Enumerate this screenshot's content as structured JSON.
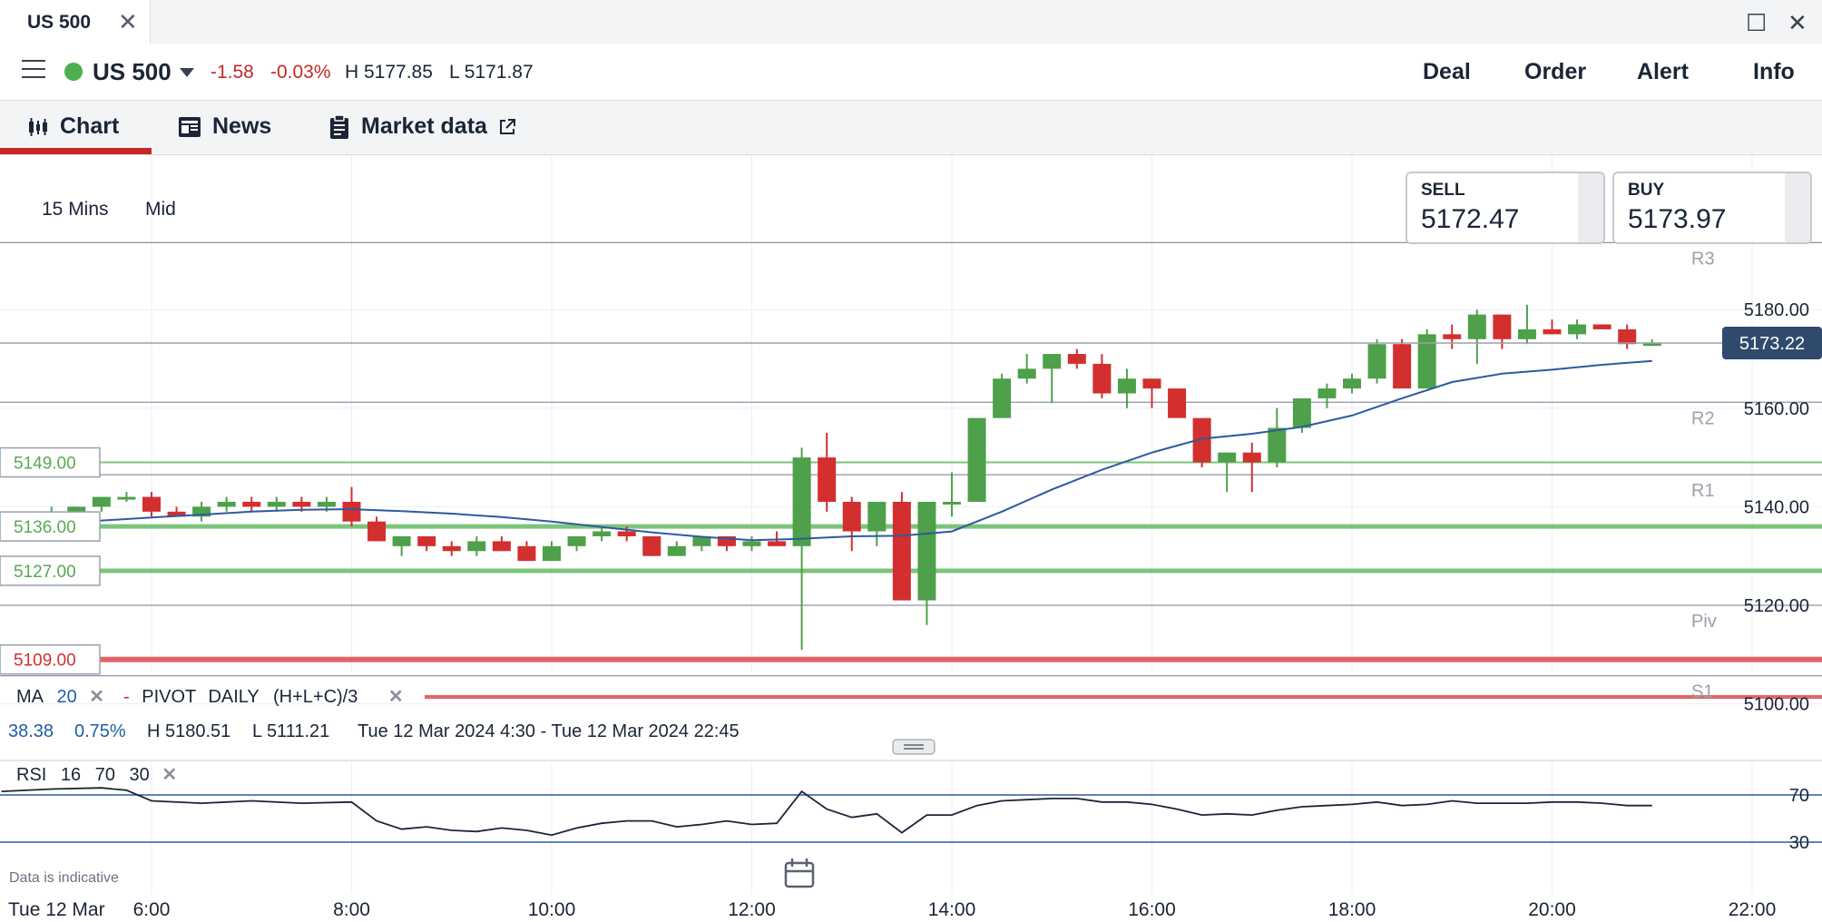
{
  "window": {
    "tab_title": "US 500",
    "close_glyph": "✕",
    "maximize_glyph": "☐",
    "window_close_glyph": "✕"
  },
  "header": {
    "instrument": "US 500",
    "change": "-1.58",
    "change_pct": "-0.03%",
    "high": "H 5177.85",
    "low": "L 5171.87",
    "status_color": "#4caf50",
    "actions": [
      "Deal",
      "Order",
      "Alert",
      "Info"
    ]
  },
  "subtabs": [
    {
      "label": "Chart",
      "icon": "candlestick-icon"
    },
    {
      "label": "News",
      "icon": "newspaper-icon"
    },
    {
      "label": "Market data",
      "icon": "clipboard-icon",
      "trail_icon": "external-link-icon"
    }
  ],
  "chart_controls": {
    "timeframe": "15 Mins",
    "price_type": "Mid"
  },
  "quote": {
    "sell_label": "SELL",
    "sell": "5172.47",
    "buy_label": "BUY",
    "buy": "5173.97"
  },
  "indicators": {
    "ma_label": "MA",
    "ma_period": "20",
    "pivot_label": "PIVOT",
    "pivot_period": "DAILY",
    "pivot_formula": "(H+L+C)/3",
    "rsi_label": "RSI",
    "rsi_period": "16",
    "rsi_upper": "70",
    "rsi_lower": "30"
  },
  "range_info": {
    "change": "38.38",
    "change_pct": "0.75%",
    "high": "H 5180.51",
    "low": "L 5111.21",
    "period": "Tue 12 Mar 2024 4:30 - Tue 12 Mar 2024 22:45"
  },
  "disclaimer": "Data is indicative",
  "date_label": "Tue 12 Mar",
  "colors": {
    "up": "#4ea04a",
    "down": "#d32f2f",
    "ma": "#2d5aa0",
    "accent": "#c62828"
  },
  "chart_data": {
    "type": "candlestick",
    "ylim": [
      5096,
      5210
    ],
    "y_ticks": [
      "5180.00",
      "5160.00",
      "5140.00",
      "5120.00",
      "5100.00"
    ],
    "x_ticks": [
      "6:00",
      "8:00",
      "10:00",
      "12:00",
      "14:00",
      "16:00",
      "18:00",
      "20:00",
      "22:00"
    ],
    "current_price": "5173.22",
    "pivots": [
      {
        "name": "R3",
        "value": 5193.6
      },
      {
        "name": "R2",
        "value": 5161.2
      },
      {
        "name": "R1",
        "value": 5146.5
      },
      {
        "name": "Piv",
        "value": 5120.0
      },
      {
        "name": "S1",
        "value": 5105.7
      }
    ],
    "levels": [
      {
        "label": "5149.00",
        "value": 5149.0,
        "color": "#7cc47a"
      },
      {
        "label": "5136.00",
        "value": 5136.0,
        "color": "#7cc47a"
      },
      {
        "label": "5127.00",
        "value": 5127.0,
        "color": "#7cc47a"
      },
      {
        "label": "5109.00",
        "value": 5109.0,
        "color": "#e06666"
      }
    ],
    "candles": [
      [
        4.5,
        5136,
        5138,
        5135,
        5137
      ],
      [
        4.75,
        5137,
        5139,
        5136,
        5138
      ],
      [
        5.0,
        5138,
        5140,
        5137,
        5139
      ],
      [
        5.25,
        5139,
        5140,
        5138,
        5140
      ],
      [
        5.5,
        5140,
        5142,
        5139,
        5142
      ],
      [
        5.75,
        5142,
        5143,
        5141,
        5142
      ],
      [
        6.0,
        5142,
        5143,
        5138,
        5139
      ],
      [
        6.25,
        5139,
        5140,
        5138,
        5138
      ],
      [
        6.5,
        5138,
        5141,
        5137,
        5140
      ],
      [
        6.75,
        5140,
        5142,
        5139,
        5141
      ],
      [
        7.0,
        5141,
        5142,
        5139,
        5140
      ],
      [
        7.25,
        5140,
        5142,
        5139,
        5141
      ],
      [
        7.5,
        5141,
        5142,
        5139,
        5140
      ],
      [
        7.75,
        5140,
        5142,
        5139,
        5141
      ],
      [
        8.0,
        5141,
        5144,
        5136,
        5137
      ],
      [
        8.25,
        5137,
        5138,
        5133,
        5133
      ],
      [
        8.5,
        5132,
        5134,
        5130,
        5134
      ],
      [
        8.75,
        5134,
        5134,
        5131,
        5132
      ],
      [
        9.0,
        5132,
        5133,
        5130,
        5131
      ],
      [
        9.25,
        5131,
        5134,
        5130,
        5133
      ],
      [
        9.5,
        5133,
        5134,
        5131,
        5131
      ],
      [
        9.75,
        5132,
        5133,
        5129,
        5129
      ],
      [
        10.0,
        5129,
        5133,
        5129,
        5132
      ],
      [
        10.25,
        5132,
        5134,
        5131,
        5134
      ],
      [
        10.5,
        5134,
        5136,
        5133,
        5135
      ],
      [
        10.75,
        5135,
        5136,
        5133,
        5134
      ],
      [
        11.0,
        5134,
        5134,
        5130,
        5130
      ],
      [
        11.25,
        5130,
        5133,
        5130,
        5132
      ],
      [
        11.5,
        5132,
        5134,
        5131,
        5134
      ],
      [
        11.75,
        5134,
        5134,
        5131,
        5132
      ],
      [
        12.0,
        5132,
        5134,
        5131,
        5133
      ],
      [
        12.25,
        5133,
        5135,
        5132,
        5132
      ],
      [
        12.5,
        5132,
        5152,
        5111,
        5150
      ],
      [
        12.75,
        5150,
        5155,
        5139,
        5141
      ],
      [
        13.0,
        5141,
        5142,
        5131,
        5135
      ],
      [
        13.25,
        5135,
        5141,
        5132,
        5141
      ],
      [
        13.5,
        5141,
        5143,
        5121,
        5121
      ],
      [
        13.75,
        5121,
        5141,
        5116,
        5141
      ],
      [
        14.0,
        5141,
        5147,
        5138,
        5141
      ],
      [
        14.25,
        5141,
        5158,
        5141,
        5158
      ],
      [
        14.5,
        5158,
        5167,
        5158,
        5166
      ],
      [
        14.75,
        5166,
        5171,
        5165,
        5168
      ],
      [
        15.0,
        5168,
        5171,
        5161,
        5171
      ],
      [
        15.25,
        5171,
        5172,
        5168,
        5169
      ],
      [
        15.5,
        5169,
        5171,
        5162,
        5163
      ],
      [
        15.75,
        5163,
        5168,
        5160,
        5166
      ],
      [
        16.0,
        5166,
        5166,
        5160,
        5164
      ],
      [
        16.25,
        5164,
        5164,
        5158,
        5158
      ],
      [
        16.5,
        5158,
        5158,
        5148,
        5149
      ],
      [
        16.75,
        5149,
        5151,
        5143,
        5151
      ],
      [
        17.0,
        5151,
        5153,
        5143,
        5149
      ],
      [
        17.25,
        5149,
        5160,
        5148,
        5156
      ],
      [
        17.5,
        5156,
        5162,
        5155,
        5162
      ],
      [
        17.75,
        5162,
        5165,
        5160,
        5164
      ],
      [
        18.0,
        5164,
        5167,
        5163,
        5166
      ],
      [
        18.25,
        5166,
        5174,
        5165,
        5173
      ],
      [
        18.5,
        5173,
        5174,
        5164,
        5164
      ],
      [
        18.75,
        5164,
        5176,
        5164,
        5175
      ],
      [
        19.0,
        5175,
        5177,
        5172,
        5174
      ],
      [
        19.25,
        5174,
        5180,
        5169,
        5179
      ],
      [
        19.5,
        5179,
        5179,
        5172,
        5174
      ],
      [
        19.75,
        5174,
        5181,
        5173,
        5176
      ],
      [
        20.0,
        5176,
        5178,
        5175,
        5175
      ],
      [
        20.25,
        5175,
        5178,
        5174,
        5177
      ],
      [
        20.5,
        5177,
        5177,
        5176,
        5176
      ],
      [
        20.75,
        5176,
        5177,
        5172,
        5173
      ],
      [
        21.0,
        5173,
        5174,
        5173,
        5173.2
      ]
    ],
    "ma20": [
      [
        4.5,
        5134.5
      ],
      [
        5.0,
        5136.2
      ],
      [
        5.5,
        5137.2
      ],
      [
        6.0,
        5137.8
      ],
      [
        6.5,
        5138.4
      ],
      [
        7.0,
        5139.0
      ],
      [
        7.5,
        5139.4
      ],
      [
        8.0,
        5139.5
      ],
      [
        8.5,
        5139.1
      ],
      [
        9.0,
        5138.6
      ],
      [
        9.5,
        5137.9
      ],
      [
        10.0,
        5137.0
      ],
      [
        10.5,
        5135.9
      ],
      [
        11.0,
        5134.8
      ],
      [
        11.5,
        5133.9
      ],
      [
        12.0,
        5133.2
      ],
      [
        12.5,
        5133.5
      ],
      [
        13.0,
        5134.0
      ],
      [
        13.5,
        5134.1
      ],
      [
        14.0,
        5135.0
      ],
      [
        14.5,
        5139.0
      ],
      [
        15.0,
        5143.5
      ],
      [
        15.5,
        5147.5
      ],
      [
        16.0,
        5151.0
      ],
      [
        16.5,
        5153.8
      ],
      [
        17.0,
        5154.8
      ],
      [
        17.5,
        5156.2
      ],
      [
        18.0,
        5158.5
      ],
      [
        18.5,
        5162.0
      ],
      [
        19.0,
        5165.3
      ],
      [
        19.5,
        5167.0
      ],
      [
        20.0,
        5167.8
      ],
      [
        20.5,
        5168.8
      ],
      [
        21.0,
        5169.6
      ]
    ],
    "rsi": {
      "levels": [
        70,
        30
      ],
      "values": [
        [
          4.5,
          73
        ],
        [
          5.0,
          75
        ],
        [
          5.5,
          76
        ],
        [
          5.75,
          74
        ],
        [
          6.0,
          65
        ],
        [
          6.5,
          63
        ],
        [
          7.0,
          65
        ],
        [
          7.5,
          63
        ],
        [
          8.0,
          64
        ],
        [
          8.25,
          48
        ],
        [
          8.5,
          41
        ],
        [
          8.75,
          43
        ],
        [
          9.0,
          40
        ],
        [
          9.25,
          39
        ],
        [
          9.5,
          42
        ],
        [
          9.75,
          40
        ],
        [
          10.0,
          36
        ],
        [
          10.25,
          42
        ],
        [
          10.5,
          46
        ],
        [
          10.75,
          48
        ],
        [
          11.0,
          48
        ],
        [
          11.25,
          43
        ],
        [
          11.5,
          45
        ],
        [
          11.75,
          48
        ],
        [
          12.0,
          45
        ],
        [
          12.25,
          46
        ],
        [
          12.5,
          73
        ],
        [
          12.75,
          58
        ],
        [
          13.0,
          51
        ],
        [
          13.25,
          54
        ],
        [
          13.5,
          38
        ],
        [
          13.75,
          53
        ],
        [
          14.0,
          53
        ],
        [
          14.25,
          61
        ],
        [
          14.5,
          65
        ],
        [
          14.75,
          66
        ],
        [
          15.0,
          67
        ],
        [
          15.25,
          67
        ],
        [
          15.5,
          64
        ],
        [
          15.75,
          64
        ],
        [
          16.0,
          62
        ],
        [
          16.25,
          58
        ],
        [
          16.5,
          53
        ],
        [
          16.75,
          54
        ],
        [
          17.0,
          53
        ],
        [
          17.25,
          57
        ],
        [
          17.5,
          60
        ],
        [
          17.75,
          61
        ],
        [
          18.0,
          62
        ],
        [
          18.25,
          64
        ],
        [
          18.5,
          61
        ],
        [
          18.75,
          62
        ],
        [
          19.0,
          65
        ],
        [
          19.25,
          63
        ],
        [
          19.5,
          63
        ],
        [
          19.75,
          63
        ],
        [
          20.0,
          64
        ],
        [
          20.25,
          64
        ],
        [
          20.5,
          63
        ],
        [
          20.75,
          61
        ],
        [
          21.0,
          61
        ]
      ]
    }
  }
}
